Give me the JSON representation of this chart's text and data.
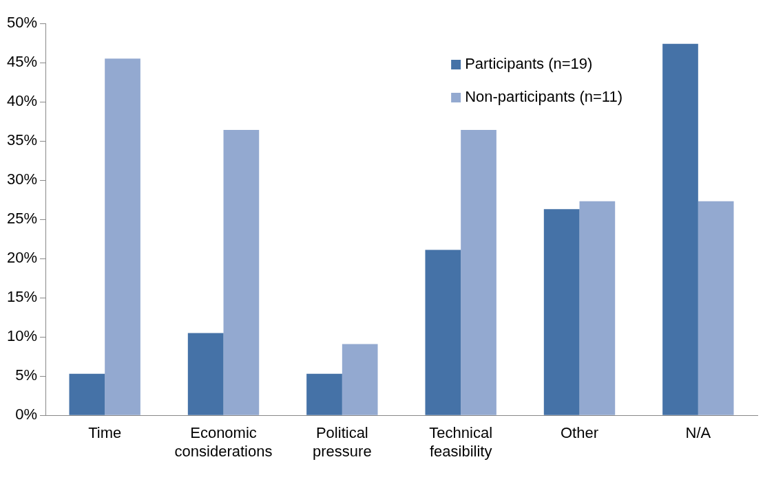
{
  "chart_data": {
    "type": "bar",
    "categories": [
      "Time",
      "Economic considerations",
      "Political pressure",
      "Technical feasibility",
      "Other",
      "N/A"
    ],
    "series": [
      {
        "name": "Participants (n=19)",
        "color": "#4572a7",
        "values": [
          5.3,
          10.5,
          5.3,
          21.1,
          26.3,
          47.4
        ]
      },
      {
        "name": "Non-participants (n=11)",
        "color": "#93a9d0",
        "values": [
          45.5,
          36.4,
          9.1,
          36.4,
          27.3,
          27.3
        ]
      }
    ],
    "ylim": [
      0,
      50
    ],
    "yticks": [
      {
        "value": 0,
        "label": "0%"
      },
      {
        "value": 5,
        "label": "5%"
      },
      {
        "value": 10,
        "label": "10%"
      },
      {
        "value": 15,
        "label": "15%"
      },
      {
        "value": 20,
        "label": "20%"
      },
      {
        "value": 25,
        "label": "25%"
      },
      {
        "value": 30,
        "label": "30%"
      },
      {
        "value": 35,
        "label": "35%"
      },
      {
        "value": 40,
        "label": "40%"
      },
      {
        "value": 45,
        "label": "45%"
      },
      {
        "value": 50,
        "label": "50%"
      }
    ],
    "grid": false,
    "legend": "top right"
  }
}
